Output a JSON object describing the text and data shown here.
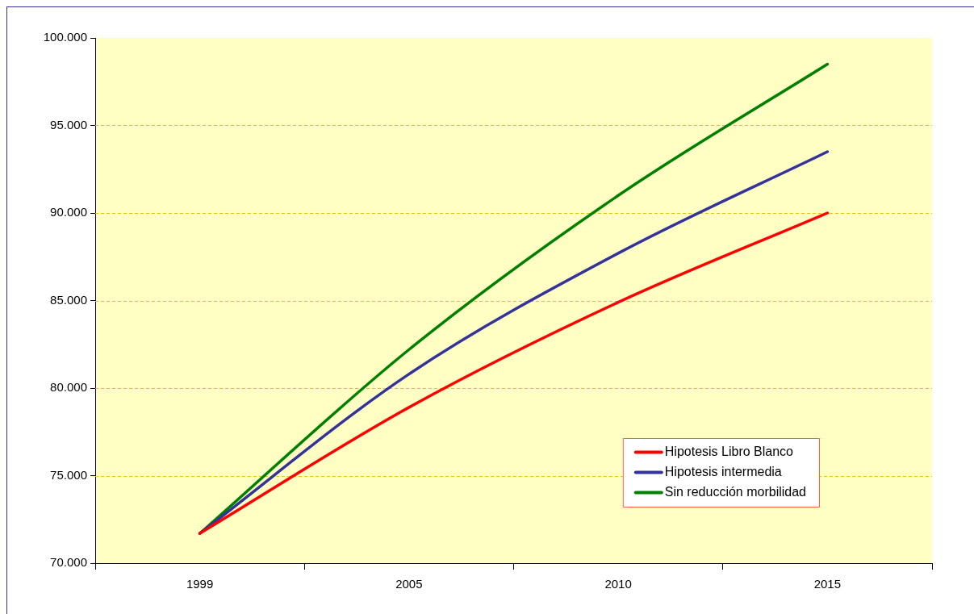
{
  "chart_data": {
    "type": "line",
    "categories": [
      "1999",
      "2005",
      "2010",
      "2015"
    ],
    "series": [
      {
        "name": "Hipotesis Libro Blanco",
        "color": "#ff0000",
        "values": [
          71700,
          78900,
          84900,
          90000
        ]
      },
      {
        "name": "Hipotesis intermedia",
        "color": "#333399",
        "values": [
          71700,
          80800,
          87700,
          93500
        ]
      },
      {
        "name": "Sin reducción morbilidad",
        "color": "#008000",
        "values": [
          71700,
          82200,
          91000,
          98500
        ]
      }
    ],
    "ylim": [
      70000,
      100000
    ],
    "yticks": [
      {
        "value": 70000,
        "label": "70.000"
      },
      {
        "value": 75000,
        "label": "75.000"
      },
      {
        "value": 80000,
        "label": "80.000"
      },
      {
        "value": 85000,
        "label": "85.000"
      },
      {
        "value": 90000,
        "label": "90.000"
      },
      {
        "value": 95000,
        "label": "95.000"
      },
      {
        "value": 100000,
        "label": "100.000"
      }
    ],
    "grid": "y",
    "legend": "bottom right",
    "marker": "none",
    "line_style": "solid"
  }
}
